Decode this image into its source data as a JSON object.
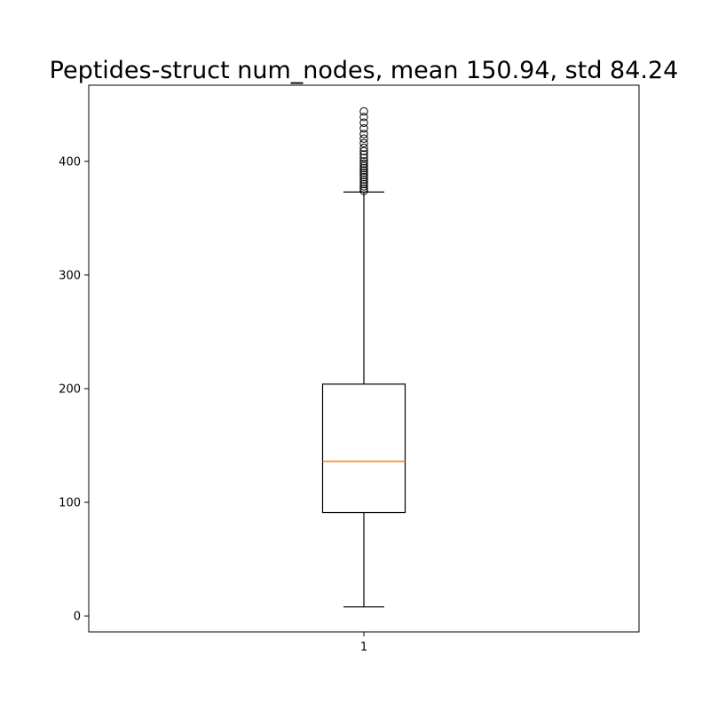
{
  "chart_data": {
    "type": "box",
    "title": "Peptides-struct num_nodes, mean 150.94, std 84.24",
    "xlabel": "",
    "ylabel": "",
    "categories": [
      "1"
    ],
    "ylim": [
      -14,
      467
    ],
    "yticks": [
      0,
      100,
      200,
      300,
      400
    ],
    "ytick_labels": [
      "0",
      "100",
      "200",
      "300",
      "400"
    ],
    "grid": false,
    "legend": "none",
    "box": {
      "whisker_low": 8,
      "q1": 91,
      "median": 136,
      "q3": 204,
      "whisker_high": 373,
      "outliers": [
        374,
        376,
        378,
        380,
        382,
        384,
        386,
        388,
        390,
        392,
        394,
        396,
        398,
        400,
        403,
        406,
        409,
        412,
        416,
        420,
        424,
        429,
        434,
        439,
        444
      ]
    },
    "colors": {
      "box": "#000000",
      "median": "#ff7f0e",
      "background": "#ffffff"
    }
  }
}
